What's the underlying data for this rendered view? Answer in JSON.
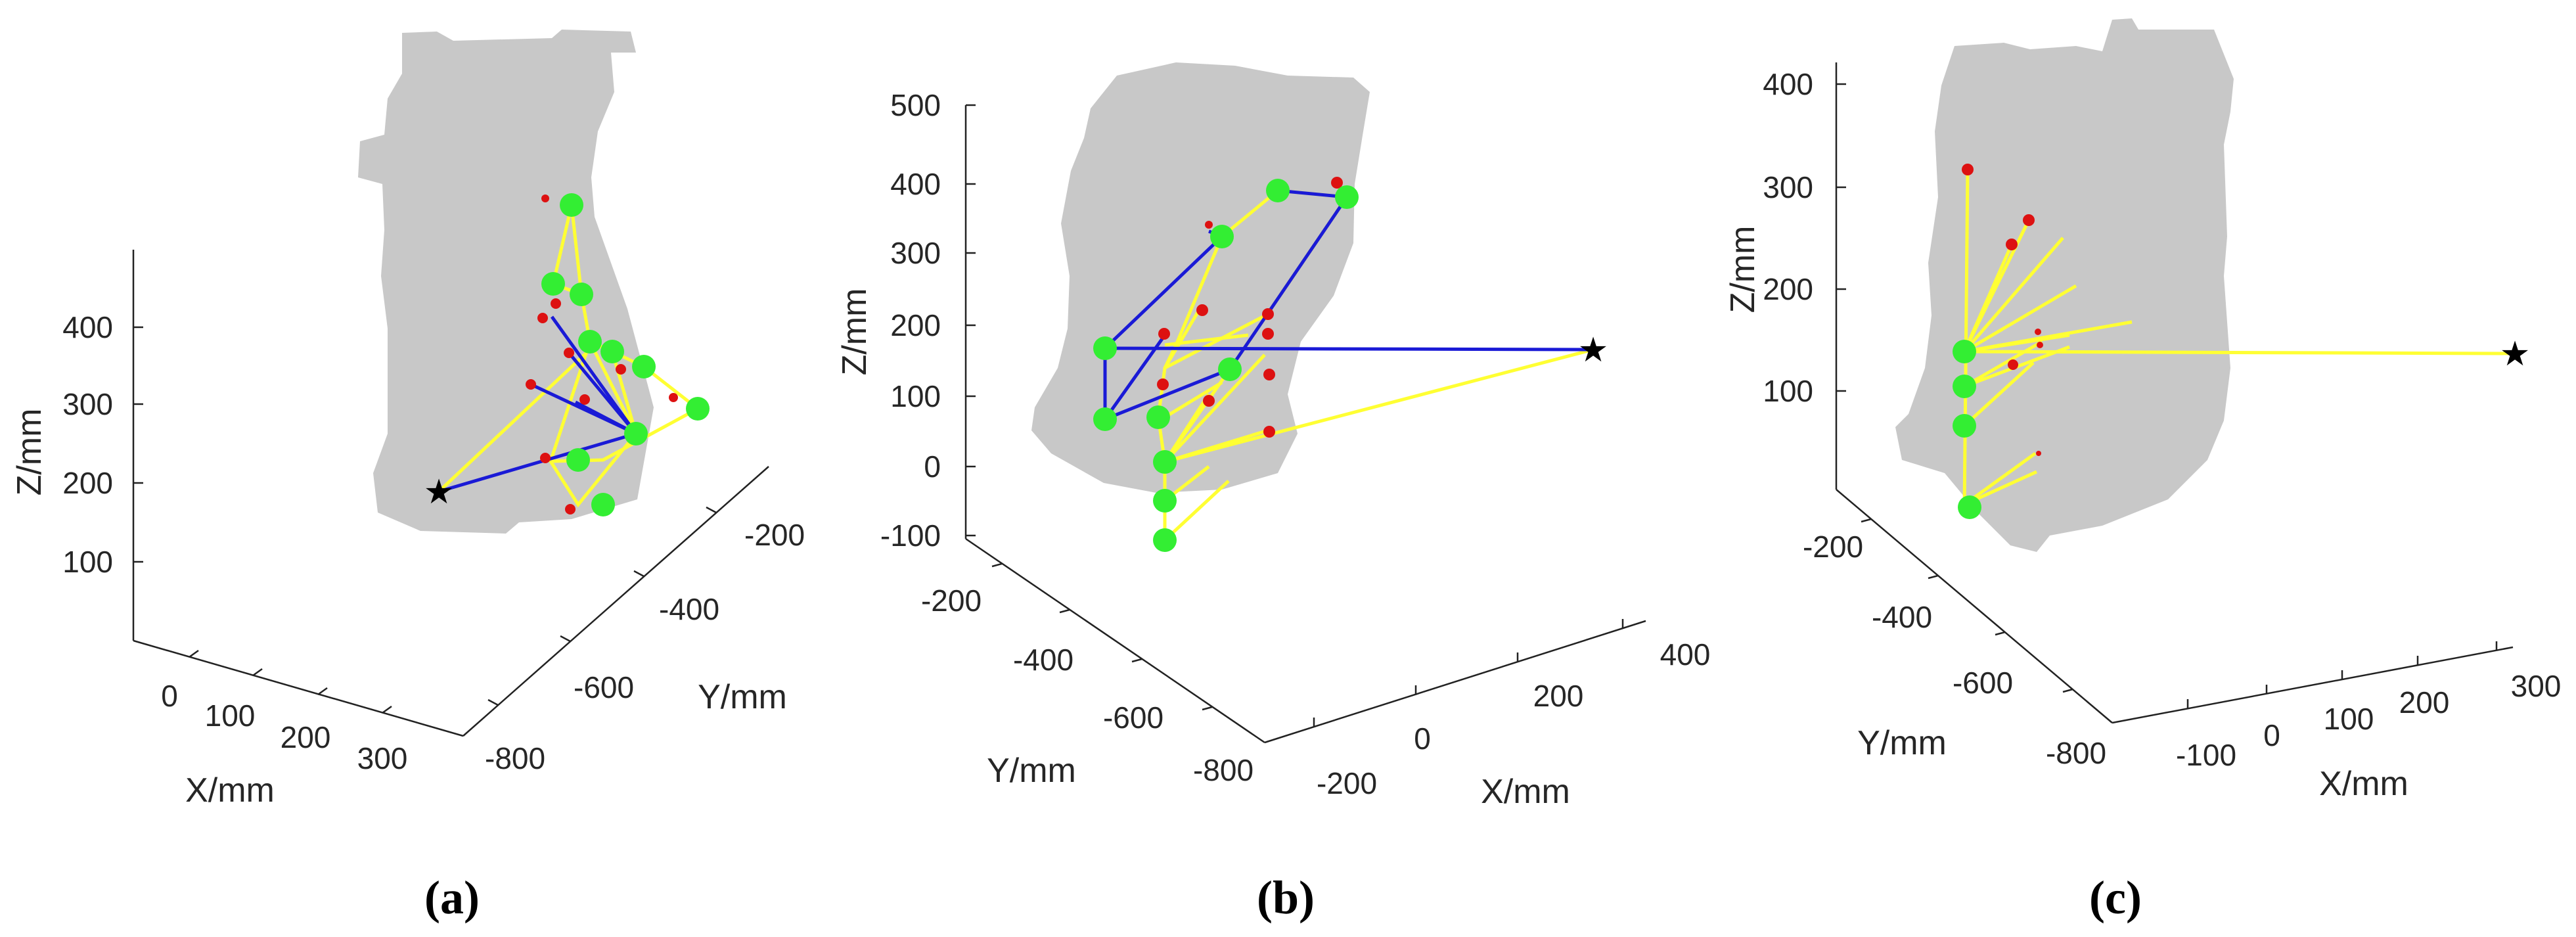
{
  "colors": {
    "silhouette": "#c8c8c8",
    "yellow_link": "#ffff33",
    "blue_link": "#1a1ad6",
    "green_node": "#33ee33",
    "red_marker": "#dd1111",
    "target_star": "#000000"
  },
  "chart_data": [
    {
      "type": "scatter",
      "view": "3d",
      "caption": "(a)",
      "xlabel": "X/mm",
      "ylabel": "Y/mm",
      "zlabel": "Z/mm",
      "x_ticks": [
        "0",
        "100",
        "200",
        "300"
      ],
      "y_ticks": [
        "-200",
        "-400",
        "-600",
        "-800"
      ],
      "z_ticks": [
        "100",
        "200",
        "300",
        "400"
      ],
      "markers": [
        "green-node",
        "red-marker",
        "target-star"
      ],
      "links": [
        "yellow",
        "blue"
      ]
    },
    {
      "type": "scatter",
      "view": "3d",
      "caption": "(b)",
      "xlabel": "X/mm",
      "ylabel": "Y/mm",
      "zlabel": "Z/mm",
      "x_ticks": [
        "-200",
        "0",
        "200",
        "400"
      ],
      "y_ticks": [
        "-200",
        "-400",
        "-600",
        "-800"
      ],
      "z_ticks": [
        "-100",
        "0",
        "100",
        "200",
        "300",
        "400",
        "500"
      ],
      "markers": [
        "green-node",
        "red-marker",
        "target-star"
      ],
      "links": [
        "yellow",
        "blue"
      ]
    },
    {
      "type": "scatter",
      "view": "3d",
      "caption": "(c)",
      "xlabel": "X/mm",
      "ylabel": "Y/mm",
      "zlabel": "Z/mm",
      "x_ticks": [
        "-100",
        "0",
        "100",
        "200",
        "300"
      ],
      "y_ticks": [
        "-200",
        "-400",
        "-600",
        "-800"
      ],
      "z_ticks": [
        "100",
        "200",
        "300",
        "400"
      ],
      "markers": [
        "green-node",
        "red-marker",
        "target-star"
      ],
      "links": [
        "yellow"
      ]
    }
  ]
}
